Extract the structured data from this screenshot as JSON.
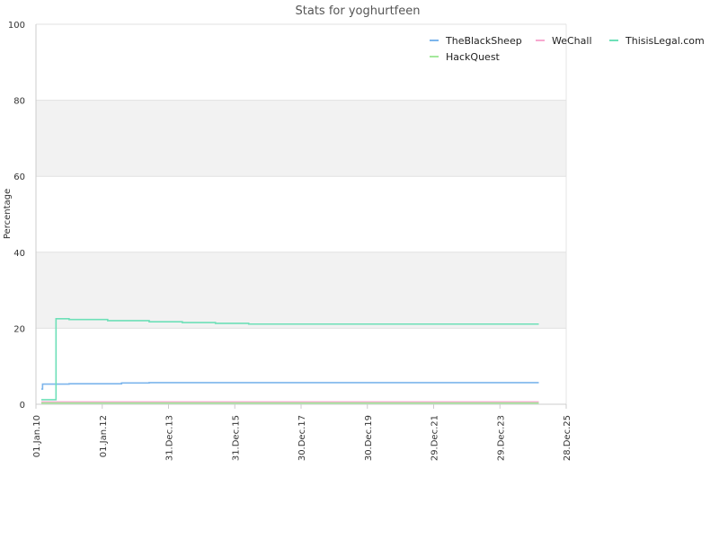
{
  "chart_data": {
    "type": "line",
    "title": "Stats for yoghurtfeen",
    "ylabel": "Percentage",
    "xlabel": "",
    "ylim": [
      0,
      100
    ],
    "yticks": [
      0,
      20,
      40,
      60,
      80,
      100
    ],
    "xlim": [
      "2010-01-01",
      "2025-12-28"
    ],
    "xticks": [
      {
        "date": "2010-01-01",
        "label": "01.Jan.10"
      },
      {
        "date": "2012-01-01",
        "label": "01.Jan.12"
      },
      {
        "date": "2013-12-31",
        "label": "31.Dec.13"
      },
      {
        "date": "2015-12-31",
        "label": "31.Dec.15"
      },
      {
        "date": "2017-12-30",
        "label": "30.Dec.17"
      },
      {
        "date": "2019-12-30",
        "label": "30.Dec.19"
      },
      {
        "date": "2021-12-29",
        "label": "29.Dec.21"
      },
      {
        "date": "2023-12-29",
        "label": "29.Dec.23"
      },
      {
        "date": "2025-12-28",
        "label": "28.Dec.25"
      }
    ],
    "bands": "alternating grey horizontal bands between gridlines 20-40 and 60-80",
    "legend_position": "top-right",
    "series": [
      {
        "name": "TheBlackSheep",
        "color": "#7cb5ec",
        "points": [
          [
            "2010-03-01",
            4
          ],
          [
            "2010-03-15",
            5.3
          ],
          [
            "2011-01-01",
            5.4
          ],
          [
            "2012-08-01",
            5.6
          ],
          [
            "2013-06-01",
            5.7
          ],
          [
            "2025-03-01",
            5.7
          ]
        ]
      },
      {
        "name": "WeChall",
        "color": "#f7a8cf",
        "points": [
          [
            "2010-03-01",
            0.6
          ],
          [
            "2025-03-01",
            0.6
          ]
        ]
      },
      {
        "name": "ThisisLegal.com",
        "color": "#6ee0b8",
        "points": [
          [
            "2010-03-01",
            1.2
          ],
          [
            "2010-08-01",
            1.2
          ],
          [
            "2010-08-10",
            22.5
          ],
          [
            "2011-01-01",
            22.3
          ],
          [
            "2012-03-01",
            22.0
          ],
          [
            "2013-06-01",
            21.7
          ],
          [
            "2014-06-01",
            21.5
          ],
          [
            "2015-06-01",
            21.3
          ],
          [
            "2016-06-01",
            21.1
          ],
          [
            "2025-03-01",
            21.1
          ]
        ]
      },
      {
        "name": "HackQuest",
        "color": "#a3e89b",
        "points": [
          [
            "2010-03-01",
            0.3
          ],
          [
            "2025-03-01",
            0.3
          ]
        ]
      }
    ]
  }
}
